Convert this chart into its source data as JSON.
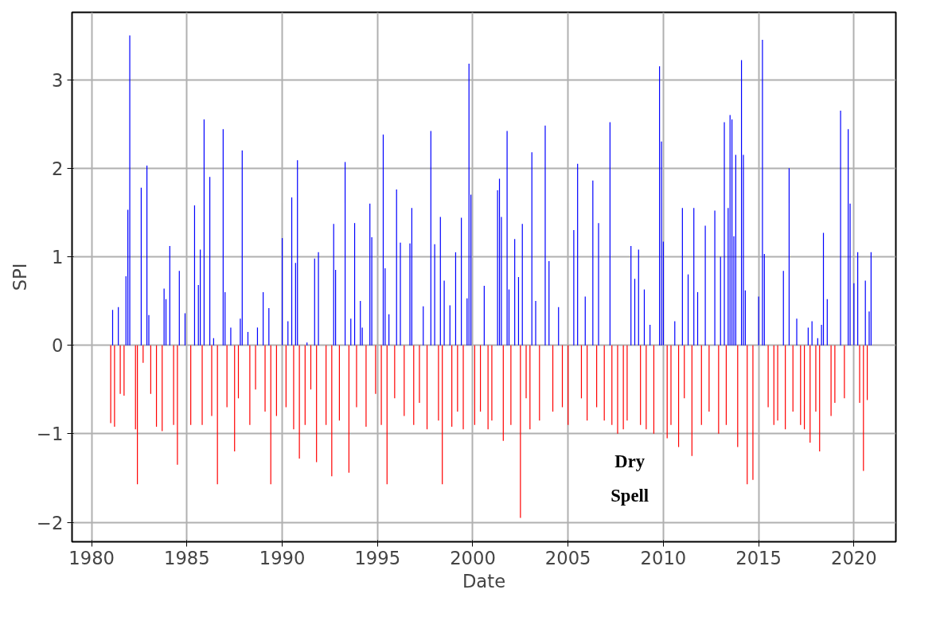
{
  "chart_data": {
    "type": "bar",
    "xlabel": "Date",
    "ylabel": "SPI",
    "xlim": [
      1978.97,
      2022.2
    ],
    "ylim": [
      -2.22,
      3.76
    ],
    "xticks": [
      1980,
      1985,
      1990,
      1995,
      2000,
      2005,
      2010,
      2015,
      2020
    ],
    "yticks": [
      {
        "value": -2,
        "label": "−2"
      },
      {
        "value": -1,
        "label": "−1"
      },
      0,
      1,
      2,
      3
    ],
    "grid": true,
    "annotations": [
      "Dry Spell"
    ],
    "series": [
      {
        "color": "#0000ff",
        "x": [
          1981.1,
          1981.4,
          1981.8,
          1981.9,
          1982.0,
          1982.6,
          1982.9,
          1983.0,
          1983.8,
          1983.9,
          1984.1,
          1984.6,
          1984.9,
          1985.4,
          1985.6,
          1985.7,
          1985.9,
          1986.2,
          1986.4,
          1986.9,
          1987.0,
          1987.3,
          1987.8,
          1987.9,
          1988.2,
          1988.7,
          1989.0,
          1989.3,
          1990.0,
          1990.3,
          1990.5,
          1990.7,
          1990.8,
          1991.3,
          1991.7,
          1991.9,
          1992.7,
          1992.8,
          1993.3,
          1993.6,
          1993.8,
          1994.1,
          1994.2,
          1994.6,
          1994.7,
          1995.3,
          1995.4,
          1995.6,
          1996.0,
          1996.2,
          1996.7,
          1996.8,
          1997.4,
          1997.8,
          1998.0,
          1998.3,
          1998.5,
          1998.8,
          1999.1,
          1999.4,
          1999.7,
          1999.8,
          1999.9,
          2000.6,
          2001.3,
          2001.4,
          2001.5,
          2001.8,
          2001.9,
          2002.2,
          2002.4,
          2002.6,
          2003.1,
          2003.3,
          2003.8,
          2004.0,
          2004.5,
          2005.3,
          2005.5,
          2005.9,
          2006.3,
          2006.6,
          2007.2,
          2008.3,
          2008.5,
          2008.7,
          2009.0,
          2009.3,
          2009.8,
          2009.9,
          2010.0,
          2010.6,
          2011.0,
          2011.3,
          2011.6,
          2011.8,
          2012.2,
          2012.7,
          2013.0,
          2013.2,
          2013.4,
          2013.5,
          2013.6,
          2013.7,
          2013.8,
          2014.1,
          2014.2,
          2014.3,
          2015.0,
          2015.2,
          2015.3,
          2016.3,
          2016.6,
          2017.0,
          2017.6,
          2017.8,
          2018.1,
          2018.3,
          2018.4,
          2018.6,
          2019.3,
          2019.7,
          2019.8,
          2020.0,
          2020.2,
          2020.6,
          2020.8,
          2020.9
        ],
        "values": [
          0.4,
          0.43,
          0.78,
          1.53,
          3.5,
          1.78,
          2.03,
          0.34,
          0.64,
          0.52,
          1.12,
          0.84,
          0.36,
          1.58,
          0.68,
          1.08,
          2.55,
          1.9,
          0.08,
          2.44,
          0.6,
          0.2,
          0.3,
          2.2,
          0.15,
          0.2,
          0.6,
          0.42,
          1.21,
          0.27,
          1.67,
          0.93,
          2.09,
          0.03,
          0.98,
          1.05,
          1.37,
          0.85,
          2.07,
          0.3,
          1.38,
          0.5,
          0.2,
          1.6,
          1.22,
          2.38,
          0.87,
          0.35,
          1.76,
          1.16,
          1.15,
          1.55,
          0.44,
          2.42,
          1.14,
          1.45,
          0.73,
          0.45,
          1.05,
          1.44,
          0.53,
          3.18,
          1.7,
          0.67,
          1.75,
          1.88,
          1.45,
          2.42,
          0.63,
          1.2,
          0.77,
          1.37,
          2.18,
          0.5,
          2.48,
          0.95,
          0.43,
          1.3,
          2.05,
          0.55,
          1.86,
          1.38,
          2.52,
          1.12,
          0.75,
          1.08,
          0.63,
          0.23,
          3.15,
          2.3,
          1.17,
          0.27,
          1.55,
          0.8,
          1.55,
          0.6,
          1.35,
          1.52,
          1.0,
          2.52,
          1.55,
          2.6,
          2.55,
          1.23,
          2.15,
          3.22,
          2.15,
          0.62,
          0.55,
          3.45,
          1.03,
          0.84,
          2.0,
          0.3,
          0.2,
          0.27,
          0.08,
          0.23,
          1.27,
          0.52,
          2.65,
          2.44,
          1.6,
          0.7,
          1.05,
          0.73,
          0.38,
          1.05
        ]
      },
      {
        "color": "#ff0000",
        "x": [
          1981.0,
          1981.2,
          1981.5,
          1981.7,
          1982.3,
          1982.4,
          1982.7,
          1983.1,
          1983.4,
          1983.7,
          1984.3,
          1984.5,
          1985.2,
          1985.8,
          1986.3,
          1986.6,
          1987.1,
          1987.5,
          1987.7,
          1988.3,
          1988.6,
          1989.1,
          1989.4,
          1989.7,
          1990.2,
          1990.6,
          1990.9,
          1991.2,
          1991.5,
          1991.8,
          1992.3,
          1992.6,
          1993.0,
          1993.5,
          1993.9,
          1994.4,
          1994.9,
          1995.2,
          1995.5,
          1995.9,
          1996.4,
          1996.9,
          1997.2,
          1997.6,
          1998.2,
          1998.4,
          1998.9,
          1999.2,
          1999.5,
          2000.1,
          2000.4,
          2000.8,
          2001.0,
          2001.6,
          2002.0,
          2002.5,
          2002.8,
          2003.0,
          2003.5,
          2004.2,
          2004.7,
          2005.0,
          2005.7,
          2006.0,
          2006.5,
          2006.9,
          2007.3,
          2007.6,
          2007.9,
          2008.1,
          2008.8,
          2009.1,
          2009.5,
          2010.2,
          2010.4,
          2010.8,
          2011.1,
          2011.5,
          2012.0,
          2012.4,
          2012.9,
          2013.3,
          2013.9,
          2014.4,
          2014.7,
          2015.5,
          2015.8,
          2016.0,
          2016.4,
          2016.8,
          2017.2,
          2017.4,
          2017.7,
          2018.0,
          2018.2,
          2018.8,
          2019.0,
          2019.5,
          2020.3,
          2020.5,
          2020.7
        ],
        "values": [
          -0.88,
          -0.92,
          -0.55,
          -0.57,
          -0.95,
          -1.57,
          -0.2,
          -0.55,
          -0.92,
          -0.97,
          -0.9,
          -1.35,
          -0.9,
          -0.9,
          -0.8,
          -1.57,
          -0.7,
          -1.2,
          -0.6,
          -0.9,
          -0.5,
          -0.75,
          -1.57,
          -0.8,
          -0.7,
          -0.95,
          -1.28,
          -0.9,
          -0.5,
          -1.32,
          -0.9,
          -1.48,
          -0.85,
          -1.44,
          -0.7,
          -0.92,
          -0.55,
          -0.9,
          -1.57,
          -0.6,
          -0.8,
          -0.9,
          -0.65,
          -0.95,
          -0.85,
          -1.57,
          -0.92,
          -0.75,
          -0.95,
          -0.9,
          -0.75,
          -0.95,
          -0.85,
          -1.08,
          -0.9,
          -1.95,
          -0.6,
          -0.95,
          -0.85,
          -0.75,
          -0.7,
          -0.9,
          -0.6,
          -0.85,
          -0.7,
          -0.85,
          -0.9,
          -1.0,
          -0.95,
          -0.85,
          -0.9,
          -0.95,
          -1.0,
          -1.05,
          -0.9,
          -1.15,
          -0.6,
          -1.25,
          -0.9,
          -0.75,
          -1.0,
          -0.9,
          -1.15,
          -1.57,
          -1.52,
          -0.7,
          -0.9,
          -0.85,
          -0.95,
          -0.75,
          -0.9,
          -0.95,
          -1.1,
          -0.75,
          -1.2,
          -0.8,
          -0.65,
          -0.6,
          -0.65,
          -1.42,
          -0.62
        ]
      }
    ]
  }
}
